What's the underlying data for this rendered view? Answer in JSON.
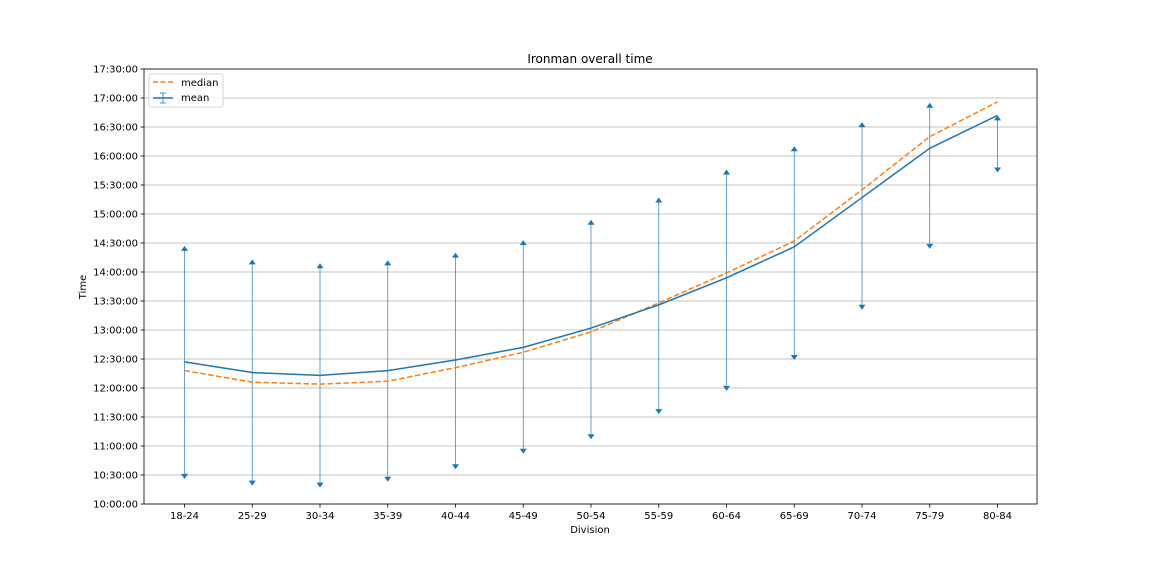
{
  "chart_data": {
    "type": "line",
    "title": "Ironman overall time",
    "xlabel": "Division",
    "ylabel": "Time",
    "categories": [
      "18-24",
      "25-29",
      "30-34",
      "35-39",
      "40-44",
      "45-49",
      "50-54",
      "55-59",
      "60-64",
      "65-69",
      "70-74",
      "75-79",
      "80-84"
    ],
    "y_ticks": [
      "10:00:00",
      "10:30:00",
      "11:00:00",
      "11:30:00",
      "12:00:00",
      "12:30:00",
      "13:00:00",
      "13:30:00",
      "14:00:00",
      "14:30:00",
      "15:00:00",
      "15:30:00",
      "16:00:00",
      "16:30:00",
      "17:00:00",
      "17:30:00"
    ],
    "ylim_minutes": [
      600,
      1050
    ],
    "grid": "horizontal",
    "legend_position": "top-left",
    "series": [
      {
        "name": "median",
        "style": "dashed",
        "color": "#ff7f0e",
        "values_minutes": [
          738,
          726,
          724,
          727,
          741,
          757,
          778,
          808,
          839,
          872,
          925,
          980,
          1016
        ]
      },
      {
        "name": "mean",
        "style": "solid",
        "color": "#1f77b4",
        "values_minutes": [
          747,
          736,
          733,
          738,
          749,
          762,
          782,
          806,
          834,
          866,
          917,
          968,
          1002
        ],
        "error_upper_minutes": [
          866,
          852,
          848,
          851,
          859,
          872,
          893,
          916,
          945,
          969,
          994,
          1014,
          1001
        ],
        "error_lower_minutes": [
          627,
          620,
          618,
          624,
          637,
          653,
          668,
          694,
          718,
          750,
          802,
          865,
          944
        ]
      }
    ]
  }
}
